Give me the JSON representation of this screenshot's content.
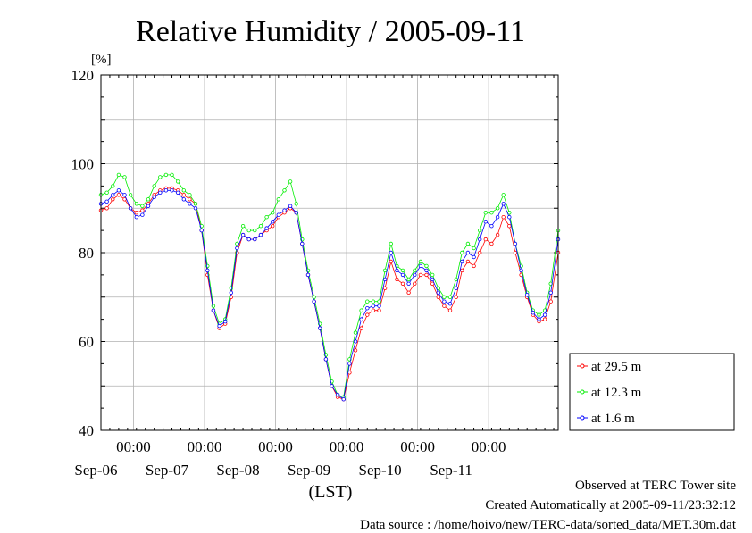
{
  "chart_data": {
    "type": "line",
    "title": "Relative Humidity / 2005-09-11",
    "ylabel": "[%]",
    "xlabel": "(LST)",
    "ylim": [
      40,
      120
    ],
    "xlim": [
      "2005-09-05T13:00",
      "2005-09-11T23:30"
    ],
    "y_ticks": [
      40,
      60,
      80,
      100,
      120
    ],
    "x_time_ticks": [
      {
        "label": "00:00",
        "x": "2005-09-06T00:00"
      },
      {
        "label": "00:00",
        "x": "2005-09-07T00:00"
      },
      {
        "label": "00:00",
        "x": "2005-09-08T00:00"
      },
      {
        "label": "00:00",
        "x": "2005-09-09T00:00"
      },
      {
        "label": "00:00",
        "x": "2005-09-10T00:00"
      },
      {
        "label": "00:00",
        "x": "2005-09-11T00:00"
      }
    ],
    "x_date_labels": [
      {
        "label": "Sep-06",
        "x": "2005-09-06T00:00"
      },
      {
        "label": "Sep-07",
        "x": "2005-09-07T00:00"
      },
      {
        "label": "Sep-08",
        "x": "2005-09-08T00:00"
      },
      {
        "label": "Sep-09",
        "x": "2005-09-09T00:00"
      },
      {
        "label": "Sep-10",
        "x": "2005-09-10T00:00"
      },
      {
        "label": "Sep-11",
        "x": "2005-09-11T00:00"
      }
    ],
    "grid": true,
    "legend_position": "right, below plot",
    "series": [
      {
        "name": "at 29.5 m",
        "color": "#ff0000",
        "marker": "open-circle",
        "points": [
          [
            "2005-09-05T13:00",
            89.5
          ],
          [
            "2005-09-05T15:00",
            90
          ],
          [
            "2005-09-05T17:00",
            92
          ],
          [
            "2005-09-05T19:00",
            93
          ],
          [
            "2005-09-05T21:00",
            92
          ],
          [
            "2005-09-05T23:00",
            90
          ],
          [
            "2005-09-06T01:00",
            89
          ],
          [
            "2005-09-06T03:00",
            89.5
          ],
          [
            "2005-09-06T05:00",
            91
          ],
          [
            "2005-09-06T07:00",
            93
          ],
          [
            "2005-09-06T09:00",
            94
          ],
          [
            "2005-09-06T11:00",
            94.5
          ],
          [
            "2005-09-06T13:00",
            94.5
          ],
          [
            "2005-09-06T15:00",
            94
          ],
          [
            "2005-09-06T17:00",
            93
          ],
          [
            "2005-09-06T19:00",
            92
          ],
          [
            "2005-09-06T21:00",
            91
          ],
          [
            "2005-09-06T23:00",
            85
          ],
          [
            "2005-09-07T01:00",
            75
          ],
          [
            "2005-09-07T03:00",
            67
          ],
          [
            "2005-09-07T05:00",
            63
          ],
          [
            "2005-09-07T07:00",
            64
          ],
          [
            "2005-09-07T09:00",
            70
          ],
          [
            "2005-09-07T11:00",
            80
          ],
          [
            "2005-09-07T13:00",
            84
          ],
          [
            "2005-09-07T15:00",
            83
          ],
          [
            "2005-09-07T17:00",
            83
          ],
          [
            "2005-09-07T19:00",
            84
          ],
          [
            "2005-09-07T21:00",
            85
          ],
          [
            "2005-09-07T23:00",
            86
          ],
          [
            "2005-09-08T01:00",
            88
          ],
          [
            "2005-09-08T03:00",
            89
          ],
          [
            "2005-09-08T05:00",
            90
          ],
          [
            "2005-09-08T07:00",
            89
          ],
          [
            "2005-09-08T09:00",
            82
          ],
          [
            "2005-09-08T11:00",
            75
          ],
          [
            "2005-09-08T13:00",
            69
          ],
          [
            "2005-09-08T15:00",
            63
          ],
          [
            "2005-09-08T17:00",
            56
          ],
          [
            "2005-09-08T19:00",
            50
          ],
          [
            "2005-09-08T21:00",
            47.5
          ],
          [
            "2005-09-08T23:00",
            47
          ],
          [
            "2005-09-09T01:00",
            53
          ],
          [
            "2005-09-09T03:00",
            58
          ],
          [
            "2005-09-09T05:00",
            63
          ],
          [
            "2005-09-09T07:00",
            66
          ],
          [
            "2005-09-09T09:00",
            67
          ],
          [
            "2005-09-09T11:00",
            67
          ],
          [
            "2005-09-09T13:00",
            72
          ],
          [
            "2005-09-09T15:00",
            78
          ],
          [
            "2005-09-09T17:00",
            74
          ],
          [
            "2005-09-09T19:00",
            73
          ],
          [
            "2005-09-09T21:00",
            71
          ],
          [
            "2005-09-09T23:00",
            73
          ],
          [
            "2005-09-10T01:00",
            75
          ],
          [
            "2005-09-10T03:00",
            75
          ],
          [
            "2005-09-10T05:00",
            73
          ],
          [
            "2005-09-10T07:00",
            70
          ],
          [
            "2005-09-10T09:00",
            68
          ],
          [
            "2005-09-10T11:00",
            67
          ],
          [
            "2005-09-10T13:00",
            70
          ],
          [
            "2005-09-10T15:00",
            76
          ],
          [
            "2005-09-10T17:00",
            78
          ],
          [
            "2005-09-10T19:00",
            77
          ],
          [
            "2005-09-10T21:00",
            80
          ],
          [
            "2005-09-10T23:00",
            83
          ],
          [
            "2005-09-11T01:00",
            82
          ],
          [
            "2005-09-11T03:00",
            84
          ],
          [
            "2005-09-11T05:00",
            88
          ],
          [
            "2005-09-11T07:00",
            86
          ],
          [
            "2005-09-11T09:00",
            80
          ],
          [
            "2005-09-11T11:00",
            75
          ],
          [
            "2005-09-11T13:00",
            70
          ],
          [
            "2005-09-11T15:00",
            66
          ],
          [
            "2005-09-11T17:00",
            64.5
          ],
          [
            "2005-09-11T19:00",
            65
          ],
          [
            "2005-09-11T21:00",
            69
          ],
          [
            "2005-09-11T23:30",
            80
          ]
        ]
      },
      {
        "name": "at 12.3 m",
        "color": "#00ee00",
        "marker": "open-circle",
        "points": [
          [
            "2005-09-05T13:00",
            93
          ],
          [
            "2005-09-05T15:00",
            93.5
          ],
          [
            "2005-09-05T17:00",
            95
          ],
          [
            "2005-09-05T19:00",
            97.5
          ],
          [
            "2005-09-05T21:00",
            97
          ],
          [
            "2005-09-05T23:00",
            93
          ],
          [
            "2005-09-06T01:00",
            91
          ],
          [
            "2005-09-06T03:00",
            90.5
          ],
          [
            "2005-09-06T05:00",
            92
          ],
          [
            "2005-09-06T07:00",
            95
          ],
          [
            "2005-09-06T09:00",
            97
          ],
          [
            "2005-09-06T11:00",
            97.5
          ],
          [
            "2005-09-06T13:00",
            97.5
          ],
          [
            "2005-09-06T15:00",
            96
          ],
          [
            "2005-09-06T17:00",
            94
          ],
          [
            "2005-09-06T19:00",
            93
          ],
          [
            "2005-09-06T21:00",
            91
          ],
          [
            "2005-09-06T23:00",
            86
          ],
          [
            "2005-09-07T01:00",
            77
          ],
          [
            "2005-09-07T03:00",
            68
          ],
          [
            "2005-09-07T05:00",
            64
          ],
          [
            "2005-09-07T07:00",
            65
          ],
          [
            "2005-09-07T09:00",
            72
          ],
          [
            "2005-09-07T11:00",
            82
          ],
          [
            "2005-09-07T13:00",
            86
          ],
          [
            "2005-09-07T15:00",
            85
          ],
          [
            "2005-09-07T17:00",
            85
          ],
          [
            "2005-09-07T19:00",
            86
          ],
          [
            "2005-09-07T21:00",
            88
          ],
          [
            "2005-09-07T23:00",
            89
          ],
          [
            "2005-09-08T01:00",
            92
          ],
          [
            "2005-09-08T03:00",
            94
          ],
          [
            "2005-09-08T05:00",
            96
          ],
          [
            "2005-09-08T07:00",
            91
          ],
          [
            "2005-09-08T09:00",
            83
          ],
          [
            "2005-09-08T11:00",
            76
          ],
          [
            "2005-09-08T13:00",
            70
          ],
          [
            "2005-09-08T15:00",
            64
          ],
          [
            "2005-09-08T17:00",
            57
          ],
          [
            "2005-09-08T19:00",
            51
          ],
          [
            "2005-09-08T21:00",
            48
          ],
          [
            "2005-09-08T23:00",
            47.5
          ],
          [
            "2005-09-09T01:00",
            56
          ],
          [
            "2005-09-09T03:00",
            62
          ],
          [
            "2005-09-09T05:00",
            67
          ],
          [
            "2005-09-09T07:00",
            69
          ],
          [
            "2005-09-09T09:00",
            69
          ],
          [
            "2005-09-09T11:00",
            69
          ],
          [
            "2005-09-09T13:00",
            76
          ],
          [
            "2005-09-09T15:00",
            82
          ],
          [
            "2005-09-09T17:00",
            77
          ],
          [
            "2005-09-09T19:00",
            76
          ],
          [
            "2005-09-09T21:00",
            74
          ],
          [
            "2005-09-09T23:00",
            76
          ],
          [
            "2005-09-10T01:00",
            78
          ],
          [
            "2005-09-10T03:00",
            77
          ],
          [
            "2005-09-10T05:00",
            75
          ],
          [
            "2005-09-10T07:00",
            72
          ],
          [
            "2005-09-10T09:00",
            70
          ],
          [
            "2005-09-10T11:00",
            70
          ],
          [
            "2005-09-10T13:00",
            74
          ],
          [
            "2005-09-10T15:00",
            80
          ],
          [
            "2005-09-10T17:00",
            82
          ],
          [
            "2005-09-10T19:00",
            81
          ],
          [
            "2005-09-10T21:00",
            85
          ],
          [
            "2005-09-10T23:00",
            89
          ],
          [
            "2005-09-11T01:00",
            89
          ],
          [
            "2005-09-11T03:00",
            90
          ],
          [
            "2005-09-11T05:00",
            93
          ],
          [
            "2005-09-11T07:00",
            89
          ],
          [
            "2005-09-11T09:00",
            82
          ],
          [
            "2005-09-11T11:00",
            77
          ],
          [
            "2005-09-11T13:00",
            71
          ],
          [
            "2005-09-11T15:00",
            67
          ],
          [
            "2005-09-11T17:00",
            66
          ],
          [
            "2005-09-11T19:00",
            67
          ],
          [
            "2005-09-11T21:00",
            73
          ],
          [
            "2005-09-11T23:30",
            85
          ]
        ]
      },
      {
        "name": "at 1.6 m",
        "color": "#0000ff",
        "marker": "open-circle",
        "points": [
          [
            "2005-09-05T13:00",
            91
          ],
          [
            "2005-09-05T15:00",
            91.5
          ],
          [
            "2005-09-05T17:00",
            93
          ],
          [
            "2005-09-05T19:00",
            94
          ],
          [
            "2005-09-05T21:00",
            93
          ],
          [
            "2005-09-05T23:00",
            90
          ],
          [
            "2005-09-06T01:00",
            88
          ],
          [
            "2005-09-06T03:00",
            88.5
          ],
          [
            "2005-09-06T05:00",
            90.5
          ],
          [
            "2005-09-06T07:00",
            92.5
          ],
          [
            "2005-09-06T09:00",
            93.5
          ],
          [
            "2005-09-06T11:00",
            94
          ],
          [
            "2005-09-06T13:00",
            94
          ],
          [
            "2005-09-06T15:00",
            93.5
          ],
          [
            "2005-09-06T17:00",
            92
          ],
          [
            "2005-09-06T19:00",
            91
          ],
          [
            "2005-09-06T21:00",
            90
          ],
          [
            "2005-09-06T23:00",
            85
          ],
          [
            "2005-09-07T01:00",
            76
          ],
          [
            "2005-09-07T03:00",
            67
          ],
          [
            "2005-09-07T05:00",
            63.5
          ],
          [
            "2005-09-07T07:00",
            64.5
          ],
          [
            "2005-09-07T09:00",
            71
          ],
          [
            "2005-09-07T11:00",
            81
          ],
          [
            "2005-09-07T13:00",
            84
          ],
          [
            "2005-09-07T15:00",
            83
          ],
          [
            "2005-09-07T17:00",
            83
          ],
          [
            "2005-09-07T19:00",
            84
          ],
          [
            "2005-09-07T21:00",
            85.5
          ],
          [
            "2005-09-07T23:00",
            87
          ],
          [
            "2005-09-08T01:00",
            88.5
          ],
          [
            "2005-09-08T03:00",
            89.5
          ],
          [
            "2005-09-08T05:00",
            90.5
          ],
          [
            "2005-09-08T07:00",
            89
          ],
          [
            "2005-09-08T09:00",
            82
          ],
          [
            "2005-09-08T11:00",
            75
          ],
          [
            "2005-09-08T13:00",
            69
          ],
          [
            "2005-09-08T15:00",
            63
          ],
          [
            "2005-09-08T17:00",
            56
          ],
          [
            "2005-09-08T19:00",
            50
          ],
          [
            "2005-09-08T21:00",
            48
          ],
          [
            "2005-09-08T23:00",
            47
          ],
          [
            "2005-09-09T01:00",
            55
          ],
          [
            "2005-09-09T03:00",
            60
          ],
          [
            "2005-09-09T05:00",
            65
          ],
          [
            "2005-09-09T07:00",
            67.5
          ],
          [
            "2005-09-09T09:00",
            68
          ],
          [
            "2005-09-09T11:00",
            68
          ],
          [
            "2005-09-09T13:00",
            74
          ],
          [
            "2005-09-09T15:00",
            80
          ],
          [
            "2005-09-09T17:00",
            76
          ],
          [
            "2005-09-09T19:00",
            75
          ],
          [
            "2005-09-09T21:00",
            73
          ],
          [
            "2005-09-09T23:00",
            75
          ],
          [
            "2005-09-10T01:00",
            77
          ],
          [
            "2005-09-10T03:00",
            76
          ],
          [
            "2005-09-10T05:00",
            74
          ],
          [
            "2005-09-10T07:00",
            71
          ],
          [
            "2005-09-10T09:00",
            69
          ],
          [
            "2005-09-10T11:00",
            68.5
          ],
          [
            "2005-09-10T13:00",
            72
          ],
          [
            "2005-09-10T15:00",
            78
          ],
          [
            "2005-09-10T17:00",
            80
          ],
          [
            "2005-09-10T19:00",
            79
          ],
          [
            "2005-09-10T21:00",
            83
          ],
          [
            "2005-09-10T23:00",
            87
          ],
          [
            "2005-09-11T01:00",
            86
          ],
          [
            "2005-09-11T03:00",
            88
          ],
          [
            "2005-09-11T05:00",
            91
          ],
          [
            "2005-09-11T07:00",
            88
          ],
          [
            "2005-09-11T09:00",
            82
          ],
          [
            "2005-09-11T11:00",
            76
          ],
          [
            "2005-09-11T13:00",
            70.5
          ],
          [
            "2005-09-11T15:00",
            66.5
          ],
          [
            "2005-09-11T17:00",
            65
          ],
          [
            "2005-09-11T19:00",
            66
          ],
          [
            "2005-09-11T21:00",
            71
          ],
          [
            "2005-09-11T23:30",
            83
          ]
        ]
      }
    ]
  },
  "footer": {
    "observed": "Observed at TERC Tower site",
    "created": "Created Automatically at 2005-09-11/23:32:12",
    "source": "Data source : /home/hoivo/new/TERC-data/sorted_data/MET.30m.dat"
  }
}
